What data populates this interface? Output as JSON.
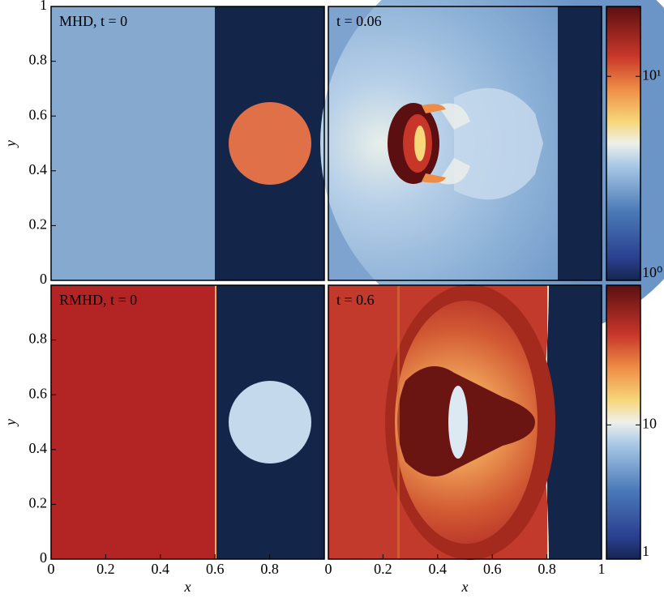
{
  "chart_data": [
    {
      "type": "image",
      "title": "MHD, t = 0",
      "ylabel": "y",
      "xlim": [
        0,
        1
      ],
      "ylim": [
        0,
        1
      ],
      "yticks": [
        0,
        0.2,
        0.4,
        0.6,
        0.8,
        1
      ]
    },
    {
      "type": "image",
      "title": "t = 0.06",
      "xlim": [
        0,
        1
      ],
      "ylim": [
        0,
        1
      ],
      "colorbar": {
        "scale": "log",
        "lim": [
          1,
          22
        ],
        "ticks": [
          {
            "value": 1,
            "label": "10⁰"
          },
          {
            "value": 10,
            "label": "10¹"
          }
        ]
      }
    },
    {
      "type": "image",
      "title": "RMHD, t = 0",
      "xlabel": "x",
      "ylabel": "y",
      "xlim": [
        0,
        1
      ],
      "ylim": [
        0,
        1
      ],
      "xticks": [
        0,
        0.2,
        0.4,
        0.6,
        0.8
      ],
      "yticks": [
        0,
        0.2,
        0.4,
        0.6,
        0.8
      ]
    },
    {
      "type": "image",
      "title": "t = 0.6",
      "xlabel": "x",
      "xlim": [
        0,
        1
      ],
      "ylim": [
        0,
        1
      ],
      "xticks": [
        0,
        0.2,
        0.4,
        0.6,
        0.8,
        1
      ],
      "colorbar": {
        "scale": "log",
        "lim": [
          1,
          110
        ],
        "ticks": [
          1,
          10
        ]
      }
    }
  ]
}
